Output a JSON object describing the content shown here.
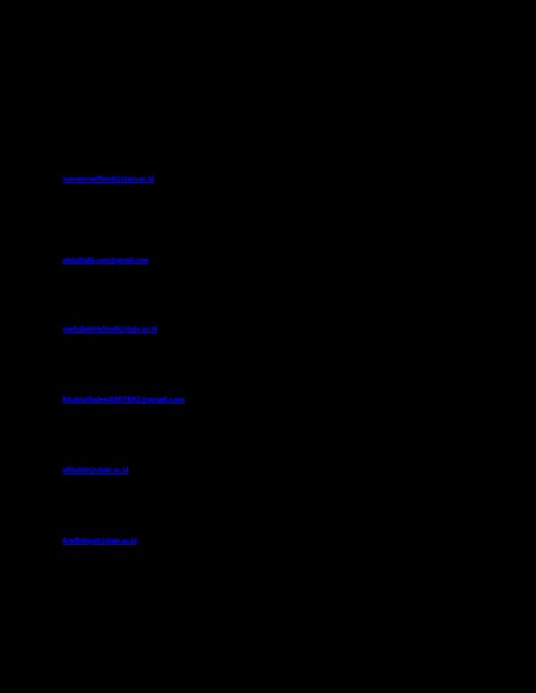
{
  "page": {
    "background_color": "#000000",
    "link_color": "#0000ff"
  },
  "links": [
    {
      "text": "sumateraeffendi@stain.ac.id"
    },
    {
      "text": "abdulhalik.ums@gmail.com"
    },
    {
      "text": "saefulbahriefendi@stain.ac.id"
    },
    {
      "text": "KhairulSaleh4567892@gmail.com"
    },
    {
      "text": "afifuddin@stain.ac.id"
    },
    {
      "text": "Ariefhidayat@stain.ac.id"
    }
  ]
}
